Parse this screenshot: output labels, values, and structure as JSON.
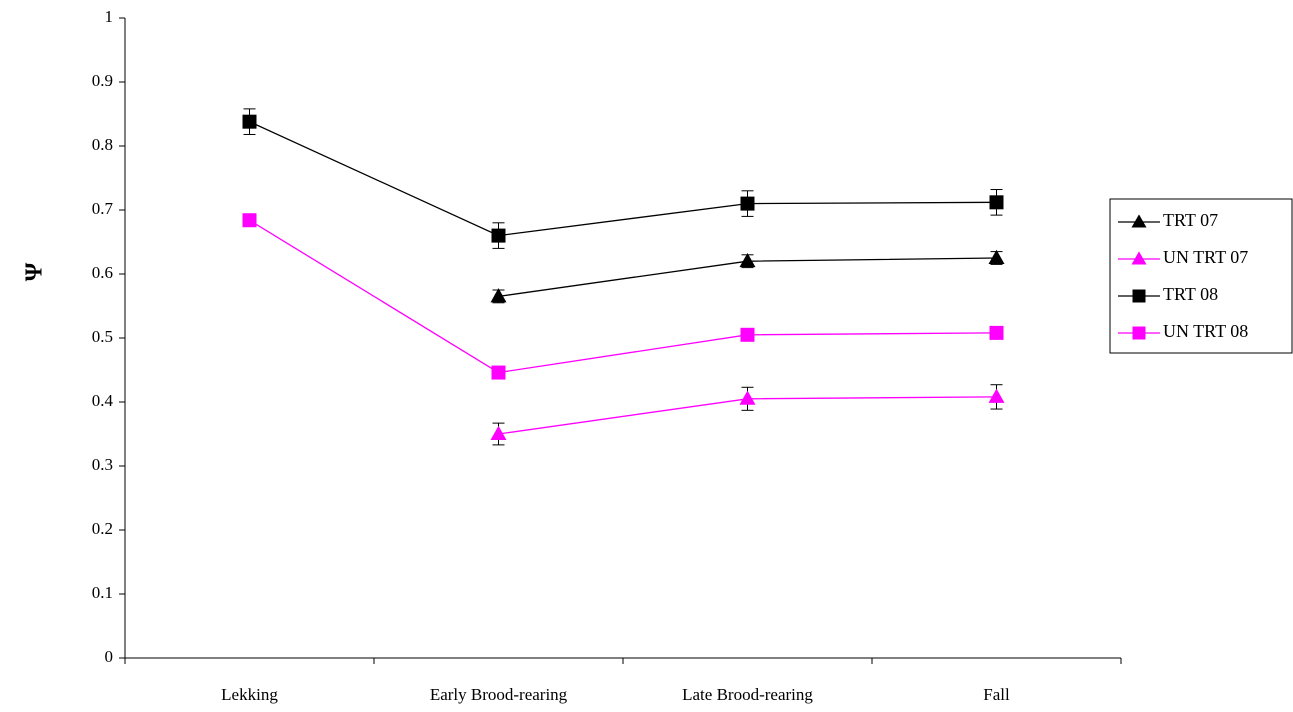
{
  "chart_data": {
    "type": "line",
    "title": "",
    "xlabel": "",
    "ylabel": "Ψ",
    "ylim": [
      0,
      1
    ],
    "yticks": [
      "0",
      "0.1",
      "0.2",
      "0.3",
      "0.4",
      "0.5",
      "0.6",
      "0.7",
      "0.8",
      "0.9",
      "1"
    ],
    "categories": [
      "Lekking",
      "Early Brood-rearing",
      "Late Brood-rearing",
      "Fall"
    ],
    "grid": false,
    "legend_position": "right",
    "series": [
      {
        "name": "TRT 07",
        "color": "#000000",
        "marker": "triangle",
        "values": [
          null,
          0.565,
          0.62,
          0.625
        ],
        "errors": [
          null,
          0.01,
          0.01,
          0.01
        ]
      },
      {
        "name": "UN TRT 07",
        "color": "#ff00ff",
        "marker": "triangle",
        "values": [
          null,
          0.35,
          0.405,
          0.408
        ],
        "errors": [
          null,
          0.017,
          0.018,
          0.019
        ]
      },
      {
        "name": "TRT 08",
        "color": "#000000",
        "marker": "square",
        "values": [
          0.838,
          0.66,
          0.71,
          0.712
        ],
        "errors": [
          0.02,
          0.02,
          0.02,
          0.02
        ]
      },
      {
        "name": "UN TRT 08",
        "color": "#ff00ff",
        "marker": "square",
        "values": [
          0.684,
          0.446,
          0.505,
          0.508
        ],
        "errors": [
          null,
          null,
          null,
          null
        ]
      }
    ]
  }
}
